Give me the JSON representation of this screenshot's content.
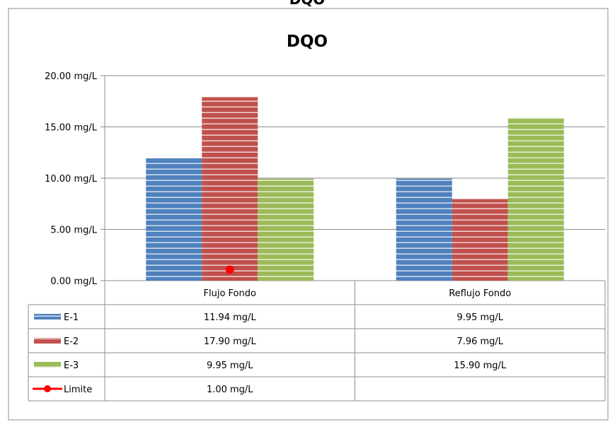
{
  "top_title": "DQO",
  "chart_data": {
    "type": "bar",
    "title": "DQO",
    "categories": [
      "Flujo Fondo",
      "Reflujo Fondo"
    ],
    "y_ticks": [
      "0.00 mg/L",
      "5.00 mg/L",
      "10.00 mg/L",
      "15.00 mg/L",
      "20.00 mg/L"
    ],
    "ylim": [
      0,
      20
    ],
    "grid": true,
    "series": [
      {
        "name": "E-1",
        "values": [
          11.94,
          9.95
        ],
        "labels": [
          "11.94 mg/L",
          "9.95 mg/L"
        ],
        "color": "#4f81bd"
      },
      {
        "name": "E-2",
        "values": [
          17.9,
          7.96
        ],
        "labels": [
          "17.90 mg/L",
          "7.96 mg/L"
        ],
        "color": "#c0504d"
      },
      {
        "name": "E-3",
        "values": [
          9.95,
          15.9
        ],
        "labels": [
          "9.95 mg/L",
          "15.90 mg/L"
        ],
        "color": "#9bbb59"
      }
    ],
    "limit": {
      "name": "Limite",
      "values": [
        1.0,
        null
      ],
      "labels": [
        "1.00 mg/L",
        ""
      ],
      "color": "#ff0000"
    }
  }
}
